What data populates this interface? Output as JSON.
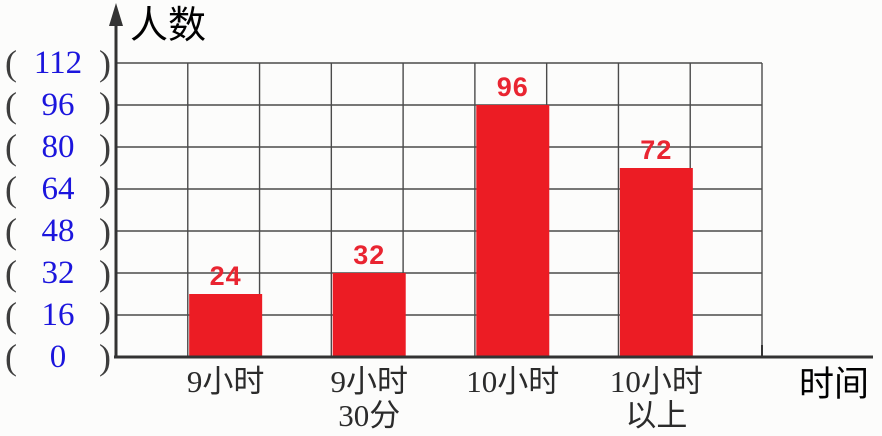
{
  "chart_data": {
    "type": "bar",
    "title": "",
    "ylabel": "人数",
    "xlabel": "时间",
    "categories": [
      "9小时",
      "9小时30分",
      "10小时",
      "10小时以上"
    ],
    "category_lines": [
      [
        "9小时"
      ],
      [
        "9小时",
        "30分"
      ],
      [
        "10小时"
      ],
      [
        "10小时",
        "以上"
      ]
    ],
    "values": [
      24,
      32,
      96,
      72
    ],
    "yticks": [
      112,
      96,
      80,
      64,
      48,
      32,
      16,
      0
    ],
    "ylim": [
      0,
      112
    ],
    "grid": true,
    "legend_position": "none",
    "tick_paren_open": "(",
    "tick_paren_close": ")",
    "colors": {
      "bar": "#ec1c24",
      "value_label": "#e92531",
      "tick_number": "#1b15dd",
      "paren": "#3d3d3d",
      "grid": "#4b4b4b",
      "axis": "#333333",
      "text": "#2b2b2b"
    }
  }
}
